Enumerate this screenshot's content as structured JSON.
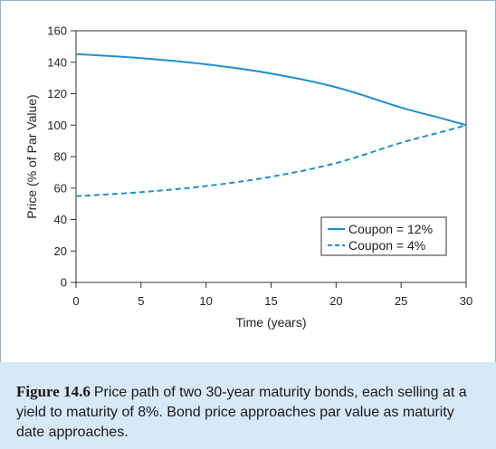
{
  "chart_data": {
    "type": "line",
    "xlabel": "Time (years)",
    "ylabel": "Price (% of Par Value)",
    "xlim": [
      0,
      30
    ],
    "ylim": [
      0,
      160
    ],
    "xticks": [
      "0",
      "5",
      "10",
      "15",
      "20",
      "25",
      "30"
    ],
    "yticks": [
      "0",
      "20",
      "40",
      "60",
      "80",
      "100",
      "120",
      "140",
      "160"
    ],
    "grid": false,
    "legend_position": "lower-right",
    "series": [
      {
        "name": "Coupon = 12%",
        "style": "solid",
        "color": "#1f8fd1",
        "x": [
          0,
          5,
          10,
          15,
          20,
          25,
          28,
          30
        ],
        "y": [
          145.2,
          142.6,
          138.7,
          132.8,
          124.1,
          111.2,
          104.6,
          100
        ]
      },
      {
        "name": "Coupon = 4%",
        "style": "dashed",
        "color": "#1f8fd1",
        "x": [
          0,
          5,
          10,
          15,
          20,
          25,
          28,
          30
        ],
        "y": [
          54.8,
          57.4,
          61.3,
          67.2,
          75.9,
          88.8,
          95.4,
          100
        ]
      }
    ]
  },
  "caption": {
    "label": "Figure 14.6",
    "text": "Price path of two 30-year maturity bonds, each selling at a yield to maturity of 8%. Bond price approaches par value as maturity date approaches."
  }
}
